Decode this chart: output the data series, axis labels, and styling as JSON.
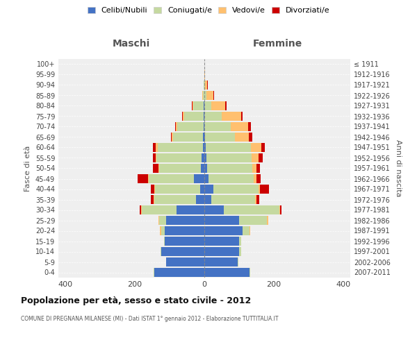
{
  "age_groups": [
    "0-4",
    "5-9",
    "10-14",
    "15-19",
    "20-24",
    "25-29",
    "30-34",
    "35-39",
    "40-44",
    "45-49",
    "50-54",
    "55-59",
    "60-64",
    "65-69",
    "70-74",
    "75-79",
    "80-84",
    "85-89",
    "90-94",
    "95-99",
    "100+"
  ],
  "birth_years": [
    "2007-2011",
    "2002-2006",
    "1997-2001",
    "1992-1996",
    "1987-1991",
    "1982-1986",
    "1977-1981",
    "1972-1976",
    "1967-1971",
    "1962-1966",
    "1957-1961",
    "1952-1956",
    "1947-1951",
    "1942-1946",
    "1937-1941",
    "1932-1936",
    "1927-1931",
    "1922-1926",
    "1917-1921",
    "1912-1916",
    "≤ 1911"
  ],
  "maschi": {
    "celibi": [
      145,
      110,
      125,
      115,
      115,
      110,
      80,
      25,
      12,
      30,
      10,
      8,
      5,
      5,
      3,
      3,
      2,
      0,
      0,
      0,
      0
    ],
    "coniugati": [
      2,
      0,
      2,
      2,
      10,
      20,
      100,
      120,
      130,
      130,
      120,
      130,
      130,
      85,
      75,
      55,
      30,
      5,
      2,
      0,
      0
    ],
    "vedovi": [
      0,
      0,
      0,
      0,
      3,
      3,
      3,
      2,
      3,
      3,
      3,
      3,
      5,
      5,
      5,
      5,
      2,
      2,
      0,
      0,
      0
    ],
    "divorziati": [
      0,
      0,
      0,
      0,
      0,
      0,
      3,
      8,
      10,
      30,
      15,
      8,
      8,
      2,
      2,
      2,
      2,
      0,
      0,
      0,
      0
    ]
  },
  "femmine": {
    "nubili": [
      130,
      95,
      100,
      100,
      110,
      100,
      55,
      20,
      25,
      12,
      8,
      5,
      3,
      2,
      0,
      0,
      0,
      0,
      0,
      0,
      0
    ],
    "coniugate": [
      2,
      2,
      5,
      5,
      20,
      80,
      160,
      125,
      130,
      130,
      130,
      130,
      130,
      85,
      75,
      50,
      20,
      5,
      2,
      0,
      0
    ],
    "vedove": [
      0,
      0,
      0,
      0,
      2,
      3,
      3,
      5,
      5,
      8,
      12,
      20,
      30,
      40,
      50,
      55,
      40,
      20,
      5,
      2,
      0
    ],
    "divorziate": [
      0,
      0,
      0,
      0,
      0,
      0,
      3,
      8,
      25,
      12,
      10,
      12,
      10,
      10,
      8,
      5,
      3,
      2,
      2,
      0,
      0
    ]
  },
  "colors": {
    "celibi_nubili": "#4472c4",
    "coniugati": "#c5d9a0",
    "vedovi": "#ffc06f",
    "divorziati": "#cc0000"
  },
  "xlim": 420,
  "title": "Popolazione per età, sesso e stato civile - 2012",
  "subtitle": "COMUNE DI PREGNANA MILANESE (MI) - Dati ISTAT 1° gennaio 2012 - Elaborazione TUTTITALIA.IT",
  "xlabel_left": "Maschi",
  "xlabel_right": "Femmine",
  "ylabel_left": "Fasce di età",
  "ylabel_right": "Anni di nascita",
  "legend_labels": [
    "Celibi/Nubili",
    "Coniugati/e",
    "Vedovi/e",
    "Divorziati/e"
  ],
  "bg_color": "#ffffff",
  "plot_bg_color": "#efefef"
}
